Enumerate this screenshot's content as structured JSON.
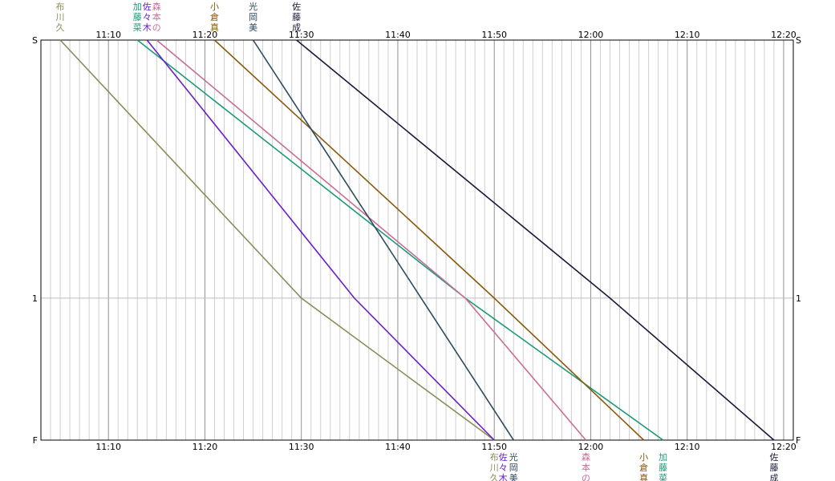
{
  "chart_data": {
    "type": "line",
    "title": "",
    "xlabel": "",
    "ylabel": "",
    "x_ticks": [
      "11:10",
      "11:20",
      "11:30",
      "11:40",
      "11:50",
      "12:00",
      "12:10",
      "12:20"
    ],
    "x_range": [
      "11:03",
      "12:21"
    ],
    "stations": [
      {
        "label": "S",
        "position": 0
      },
      {
        "label": "1",
        "position": 1
      },
      {
        "label": "F",
        "position": 1.55
      }
    ],
    "grid": true,
    "series": [
      {
        "name": "布川久",
        "color": "#8c8c5a",
        "points": [
          [
            "11:05:00",
            0
          ],
          [
            "11:30:00",
            1
          ],
          [
            "11:50:00",
            1.55
          ]
        ]
      },
      {
        "name": "加藤菜",
        "color": "#1a9a78",
        "points": [
          [
            "11:13:00",
            0
          ],
          [
            "11:47:00",
            1
          ],
          [
            "12:07:30",
            1.55
          ]
        ]
      },
      {
        "name": "佐々木",
        "color": "#6a20c8",
        "points": [
          [
            "11:14:00",
            0
          ],
          [
            "11:35:30",
            1
          ],
          [
            "11:50:00",
            1.55
          ]
        ]
      },
      {
        "name": "森本の",
        "color": "#c86e98",
        "points": [
          [
            "11:15:00",
            0
          ],
          [
            "11:47:00",
            1
          ],
          [
            "11:59:30",
            1.55
          ]
        ]
      },
      {
        "name": "小倉真",
        "color": "#8a5a0a",
        "points": [
          [
            "11:21:00",
            0
          ],
          [
            "11:50:00",
            1
          ],
          [
            "12:05:30",
            1.55
          ]
        ]
      },
      {
        "name": "光岡美",
        "color": "#2e4a5e",
        "points": [
          [
            "11:25:00",
            0
          ],
          [
            "11:52:00",
            1.55
          ]
        ]
      },
      {
        "name": "佐藤成",
        "color": "#1a1a3a",
        "points": [
          [
            "11:29:30",
            0
          ],
          [
            "12:02:00",
            1
          ],
          [
            "12:19:00",
            1.55
          ]
        ]
      }
    ],
    "top_labels": [
      {
        "series": "布川久",
        "chars": [
          "布",
          "川",
          "久"
        ],
        "color": "#8c8c5a"
      },
      {
        "series": "加藤菜",
        "chars": [
          "加",
          "藤",
          "菜"
        ],
        "color": "#1a9a78"
      },
      {
        "series": "佐々木",
        "chars": [
          "佐",
          "々",
          "木"
        ],
        "color": "#6a20c8"
      },
      {
        "series": "森本の",
        "chars": [
          "森",
          "本",
          "の"
        ],
        "color": "#c86e98"
      },
      {
        "series": "小倉真",
        "chars": [
          "小",
          "倉",
          "真"
        ],
        "color": "#8a5a0a"
      },
      {
        "series": "光岡美",
        "chars": [
          "光",
          "岡",
          "美"
        ],
        "color": "#2e4a5e"
      },
      {
        "series": "佐藤成",
        "chars": [
          "佐",
          "藤",
          "成"
        ],
        "color": "#1a1a3a"
      }
    ],
    "bottom_labels": [
      {
        "series": "布川久",
        "chars": [
          "布",
          "川",
          "久"
        ],
        "color": "#8c8c5a"
      },
      {
        "series": "佐々木",
        "chars": [
          "佐",
          "々",
          "木"
        ],
        "color": "#6a20c8"
      },
      {
        "series": "光岡美",
        "chars": [
          "光",
          "岡",
          "美"
        ],
        "color": "#2e4a5e"
      },
      {
        "series": "森本の",
        "chars": [
          "森",
          "本",
          "の"
        ],
        "color": "#c86e98"
      },
      {
        "series": "小倉真",
        "chars": [
          "小",
          "倉",
          "真"
        ],
        "color": "#8a5a0a"
      },
      {
        "series": "加藤菜",
        "chars": [
          "加",
          "藤",
          "菜"
        ],
        "color": "#1a9a78"
      },
      {
        "series": "佐藤成",
        "chars": [
          "佐",
          "藤",
          "成"
        ],
        "color": "#1a1a3a"
      }
    ]
  }
}
